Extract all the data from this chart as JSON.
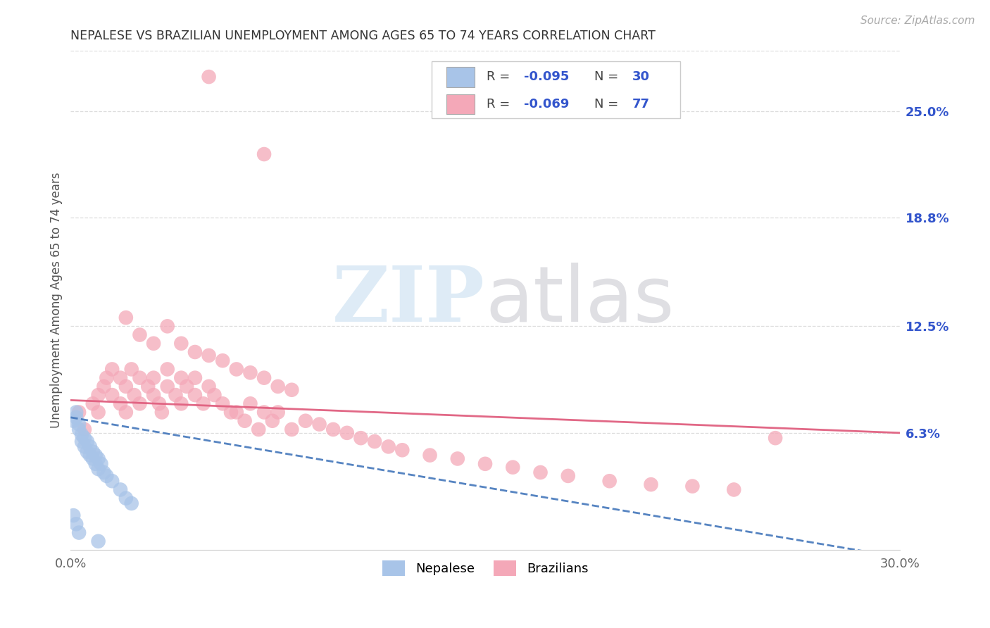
{
  "title": "NEPALESE VS BRAZILIAN UNEMPLOYMENT AMONG AGES 65 TO 74 YEARS CORRELATION CHART",
  "source": "Source: ZipAtlas.com",
  "ylabel": "Unemployment Among Ages 65 to 74 years",
  "xlim": [
    0.0,
    0.3
  ],
  "ylim": [
    -0.005,
    0.285
  ],
  "xticks": [
    0.0,
    0.05,
    0.1,
    0.15,
    0.2,
    0.25,
    0.3
  ],
  "xticklabels": [
    "0.0%",
    "",
    "",
    "",
    "",
    "",
    "30.0%"
  ],
  "ytick_right_labels": [
    "6.3%",
    "12.5%",
    "18.8%",
    "25.0%"
  ],
  "ytick_right_values": [
    0.063,
    0.125,
    0.188,
    0.25
  ],
  "nepalese_color": "#a8c4e8",
  "brazilian_color": "#f4a8b8",
  "nepalese_line_color": "#4477bb",
  "brazilian_line_color": "#e06080",
  "legend_color": "#3355cc",
  "watermark_zip_color": "#c8dff0",
  "watermark_atlas_color": "#c0c0c8",
  "background_color": "#ffffff",
  "grid_color": "#dddddd",
  "nepalese_x": [
    0.001,
    0.002,
    0.002,
    0.003,
    0.003,
    0.004,
    0.004,
    0.005,
    0.005,
    0.006,
    0.006,
    0.007,
    0.007,
    0.008,
    0.008,
    0.009,
    0.009,
    0.01,
    0.01,
    0.011,
    0.012,
    0.013,
    0.015,
    0.018,
    0.02,
    0.022,
    0.001,
    0.002,
    0.003,
    0.01
  ],
  "nepalese_y": [
    0.07,
    0.075,
    0.072,
    0.068,
    0.065,
    0.062,
    0.058,
    0.06,
    0.055,
    0.058,
    0.052,
    0.055,
    0.05,
    0.052,
    0.048,
    0.05,
    0.045,
    0.048,
    0.042,
    0.045,
    0.04,
    0.038,
    0.035,
    0.03,
    0.025,
    0.022,
    0.015,
    0.01,
    0.005,
    0.0
  ],
  "brazilian_x": [
    0.003,
    0.005,
    0.008,
    0.01,
    0.01,
    0.012,
    0.013,
    0.015,
    0.015,
    0.018,
    0.018,
    0.02,
    0.02,
    0.022,
    0.023,
    0.025,
    0.025,
    0.028,
    0.03,
    0.03,
    0.032,
    0.033,
    0.035,
    0.035,
    0.038,
    0.04,
    0.04,
    0.042,
    0.045,
    0.045,
    0.048,
    0.05,
    0.052,
    0.055,
    0.058,
    0.06,
    0.063,
    0.065,
    0.068,
    0.07,
    0.073,
    0.075,
    0.08,
    0.085,
    0.09,
    0.095,
    0.1,
    0.105,
    0.11,
    0.115,
    0.12,
    0.13,
    0.14,
    0.15,
    0.16,
    0.17,
    0.18,
    0.195,
    0.21,
    0.225,
    0.24,
    0.255,
    0.02,
    0.025,
    0.03,
    0.035,
    0.04,
    0.045,
    0.05,
    0.055,
    0.06,
    0.065,
    0.07,
    0.075,
    0.08,
    0.05,
    0.07
  ],
  "brazilian_y": [
    0.075,
    0.065,
    0.08,
    0.075,
    0.085,
    0.09,
    0.095,
    0.085,
    0.1,
    0.08,
    0.095,
    0.09,
    0.075,
    0.1,
    0.085,
    0.095,
    0.08,
    0.09,
    0.085,
    0.095,
    0.08,
    0.075,
    0.09,
    0.1,
    0.085,
    0.095,
    0.08,
    0.09,
    0.085,
    0.095,
    0.08,
    0.09,
    0.085,
    0.08,
    0.075,
    0.075,
    0.07,
    0.08,
    0.065,
    0.075,
    0.07,
    0.075,
    0.065,
    0.07,
    0.068,
    0.065,
    0.063,
    0.06,
    0.058,
    0.055,
    0.053,
    0.05,
    0.048,
    0.045,
    0.043,
    0.04,
    0.038,
    0.035,
    0.033,
    0.032,
    0.03,
    0.06,
    0.13,
    0.12,
    0.115,
    0.125,
    0.115,
    0.11,
    0.108,
    0.105,
    0.1,
    0.098,
    0.095,
    0.09,
    0.088,
    0.27,
    0.225
  ],
  "nep_trend_x0": 0.0,
  "nep_trend_x1": 0.155,
  "nep_trend_y0": 0.072,
  "nep_trend_y1": 0.03,
  "bra_trend_x0": 0.0,
  "bra_trend_x1": 0.3,
  "bra_trend_y0": 0.082,
  "bra_trend_y1": 0.063
}
